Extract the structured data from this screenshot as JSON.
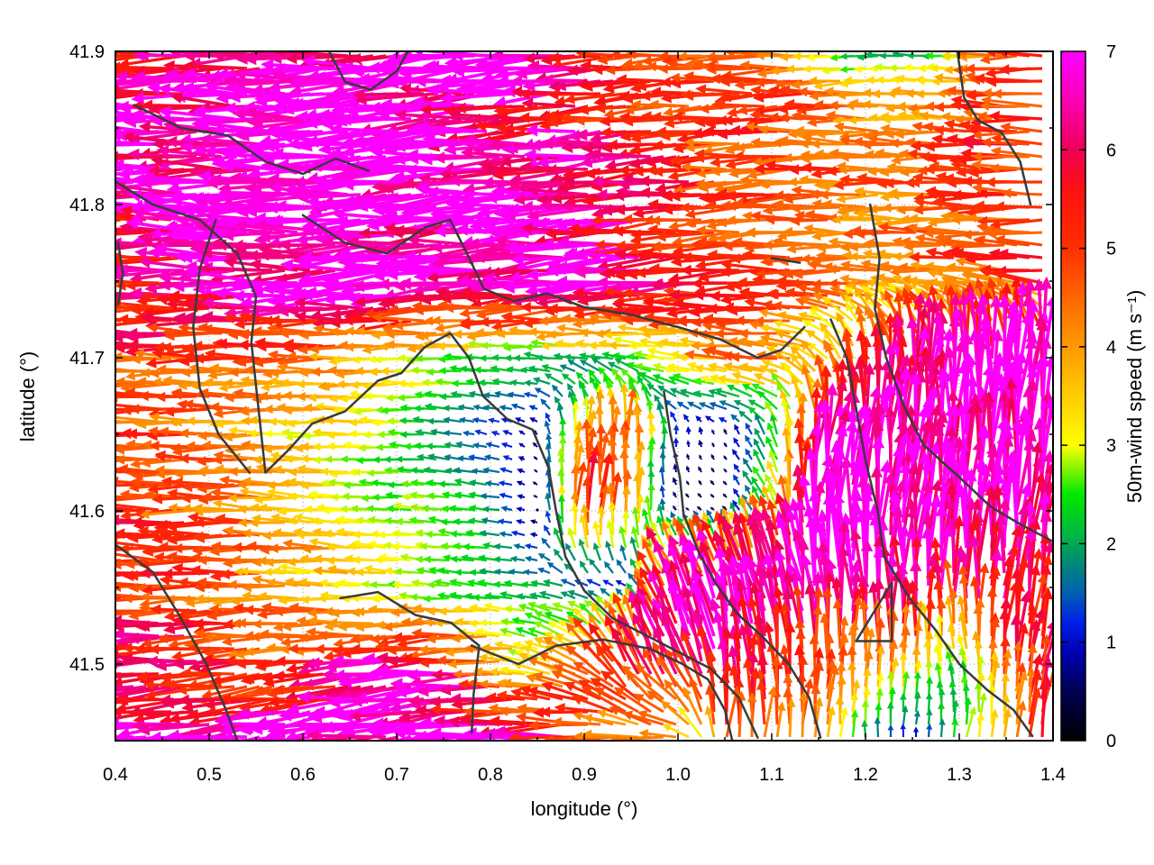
{
  "figure": {
    "background": "#ffffff"
  },
  "chart_data": {
    "type": "quiver",
    "title": "",
    "xlabel": "longitude (°)",
    "ylabel": "latitude (°)",
    "xlim": [
      0.4,
      1.4
    ],
    "ylim": [
      41.45,
      41.9
    ],
    "xticks": [
      0.4,
      0.5,
      0.6,
      0.7,
      0.8,
      0.9,
      1.0,
      1.1,
      1.2,
      1.3,
      1.4
    ],
    "xtick_labels": [
      "0.4",
      "0.5",
      "0.6",
      "0.7",
      "0.8",
      "0.9",
      "1.0",
      "1.1",
      "1.2",
      "1.3",
      "1.4"
    ],
    "xticks_minor": [
      0.45,
      0.55,
      0.65,
      0.75,
      0.85,
      0.95,
      1.05,
      1.15,
      1.25,
      1.35
    ],
    "yticks": [
      41.5,
      41.6,
      41.7,
      41.8,
      41.9
    ],
    "ytick_labels": [
      "41.5",
      "41.6",
      "41.7",
      "41.8",
      "41.9"
    ],
    "yticks_minor": [
      41.45,
      41.55,
      41.65,
      41.75,
      41.85
    ],
    "grid": "dotted",
    "legend_position": "none",
    "colorbar": {
      "label": "50m-wind speed (m s⁻¹)",
      "min": 0,
      "max": 7,
      "ticks": [
        0,
        1,
        2,
        3,
        4,
        5,
        6,
        7
      ],
      "tick_labels": [
        "0",
        "1",
        "2",
        "3",
        "4",
        "5",
        "6",
        "7"
      ]
    },
    "colormap": [
      [
        0,
        "#000000"
      ],
      [
        0.5,
        "#000052"
      ],
      [
        0.9,
        "#0000b4"
      ],
      [
        1.2,
        "#0020e8"
      ],
      [
        1.5,
        "#0060b0"
      ],
      [
        1.8,
        "#008878"
      ],
      [
        2.1,
        "#00b840"
      ],
      [
        2.5,
        "#00e800"
      ],
      [
        3.0,
        "#ffff00"
      ],
      [
        3.5,
        "#ffcc00"
      ],
      [
        4.0,
        "#ff9900"
      ],
      [
        4.5,
        "#ff6600"
      ],
      [
        5.0,
        "#ff3000"
      ],
      [
        5.6,
        "#ff1010"
      ],
      [
        6.0,
        "#ee0055"
      ],
      [
        6.5,
        "#fb00b5"
      ],
      [
        7.0,
        "#ff00ff"
      ]
    ],
    "field": {
      "units": "m s-1",
      "lon_start": 0.4,
      "lon_step": 0.05,
      "lon_count": 21,
      "lat_start": 41.9,
      "lat_step": -0.05,
      "lat_count": 10,
      "u": [
        [
          -6.5,
          -6,
          -7,
          -6.5,
          -7,
          -7,
          -7,
          -7,
          -6.5,
          -7,
          -6,
          -5,
          -4.5,
          -5,
          -5.5,
          -4,
          -2.2,
          -2,
          -2.5,
          -4.5,
          -5
        ],
        [
          -6.5,
          -7,
          -6,
          -7,
          -6.5,
          -7,
          -7,
          -7,
          -7,
          -6.5,
          -6,
          -5.5,
          -5,
          -4.8,
          -5,
          -5,
          -4.8,
          -4.5,
          -4.5,
          -5,
          -5.5
        ],
        [
          -6,
          -6.5,
          -7,
          -7,
          -7,
          -7,
          -7,
          -7,
          -7,
          -7,
          -6.5,
          -6,
          -5.5,
          -5,
          -4.8,
          -4.8,
          -4.5,
          -4.5,
          -4.8,
          -5,
          -5
        ],
        [
          -5.5,
          -6,
          -6.5,
          -7,
          -7,
          -7,
          -7,
          -7,
          -7,
          -7,
          -7,
          -6.5,
          -6,
          -5.5,
          -5,
          -4.8,
          -4.5,
          -4.3,
          -4.5,
          -4.8,
          -5
        ],
        [
          -5.5,
          -5,
          -5,
          -4.8,
          -4.5,
          -4.2,
          -3.5,
          -3,
          -2.5,
          -2.3,
          -2.3,
          -2.5,
          -3.5,
          -4,
          -4.3,
          -3,
          -0.5,
          0,
          0.2,
          0.3,
          0.3
        ],
        [
          -5,
          -4.8,
          -4.5,
          -4,
          -3.2,
          -3.2,
          -2.6,
          -2,
          -1.2,
          -0.5,
          0.2,
          0.3,
          0,
          -0.3,
          -1,
          0.5,
          0.3,
          0.3,
          0.2,
          0.3,
          0.5
        ],
        [
          -5.5,
          -5,
          -4.8,
          -4.5,
          -4,
          -3.5,
          -3,
          -2.6,
          -2.2,
          -0.4,
          0.5,
          0.3,
          -0.4,
          -0.4,
          -1.5,
          1,
          0.5,
          0.5,
          0.5,
          0.5,
          1
        ],
        [
          -6,
          -5.5,
          -5,
          -4.5,
          -4,
          -3.5,
          -3,
          -2.5,
          -2.2,
          -2,
          -1.5,
          -1,
          -2.5,
          -2,
          -1.5,
          -1,
          -0.5,
          0,
          0.3,
          0.5,
          0.5
        ],
        [
          -6,
          -5.5,
          -5.5,
          -5,
          -5,
          -5.5,
          -6,
          -6.5,
          -5,
          -3,
          -4,
          -2.5,
          -2,
          -1,
          -0.5,
          0,
          0.3,
          0.5,
          -1,
          0.5,
          1
        ],
        [
          -7,
          -7,
          -7,
          -7,
          -7,
          -7,
          -7,
          -7,
          -7,
          -6.5,
          -6,
          -5,
          -4.5,
          0.5,
          0.3,
          0.5,
          0,
          0,
          0.5,
          0.5,
          1
        ]
      ],
      "v": [
        [
          0,
          0,
          0,
          0,
          0,
          -0.3,
          -0.3,
          -0.5,
          -0.5,
          -0.5,
          -0.5,
          -0.3,
          -0.3,
          0,
          0,
          0,
          -0.3,
          0.2,
          0,
          0,
          0
        ],
        [
          0,
          0,
          0,
          0,
          0,
          -0.3,
          -0.5,
          -0.5,
          -0.5,
          -0.5,
          -0.5,
          -0.5,
          -0.3,
          -0.3,
          -0.3,
          0,
          0,
          0,
          0.3,
          0.3,
          0
        ],
        [
          0,
          0,
          0,
          0,
          -0.3,
          -0.5,
          -0.5,
          -0.5,
          -0.5,
          -0.5,
          -0.5,
          -0.5,
          -0.3,
          -0.3,
          -0.3,
          0,
          0,
          0,
          0,
          0,
          0
        ],
        [
          0,
          0,
          0,
          0,
          0,
          -0.3,
          -0.5,
          -0.5,
          -0.5,
          -0.5,
          -0.5,
          -0.5,
          -0.3,
          -0.3,
          0,
          0,
          0.3,
          0.3,
          0.5,
          0.5,
          0.5
        ],
        [
          0,
          0,
          0,
          0,
          0,
          0,
          0,
          0,
          0.2,
          0.2,
          0.3,
          0.5,
          0.5,
          0.5,
          0.5,
          1.5,
          4.5,
          6,
          6.5,
          7,
          7
        ],
        [
          0,
          0,
          0,
          0,
          0,
          0,
          0,
          0.2,
          0.3,
          0.5,
          3.5,
          4.5,
          1,
          0.5,
          2,
          6,
          7,
          7,
          7,
          7,
          7
        ],
        [
          0,
          0,
          0,
          0.2,
          0.2,
          0.2,
          0.2,
          0.3,
          0.3,
          0.2,
          5.5,
          4,
          0.3,
          0.3,
          2.5,
          7,
          7,
          7,
          7,
          7,
          7
        ],
        [
          0,
          0,
          0,
          0,
          0.2,
          0.3,
          0.3,
          0.3,
          0.3,
          0.3,
          0.5,
          0.5,
          5.5,
          6.5,
          7,
          7,
          7,
          6.5,
          6.5,
          6.5,
          6
        ],
        [
          -0.3,
          -0.3,
          -0.3,
          -0.5,
          -0.5,
          -0.5,
          -0.5,
          -0.5,
          0,
          1,
          2,
          6,
          6.5,
          6.5,
          5.5,
          5,
          4.5,
          4,
          2,
          5,
          5.5
        ],
        [
          -0.8,
          -0.8,
          -1,
          -1,
          -1,
          -1,
          -1,
          -0.8,
          -0.8,
          -0.5,
          -0.5,
          -0.3,
          0,
          5,
          4.5,
          4,
          2,
          0.8,
          2.5,
          3.5,
          6
        ]
      ]
    },
    "contours": [
      [
        [
          0.42,
          41.865
        ],
        [
          0.47,
          41.85
        ],
        [
          0.52,
          41.845
        ],
        [
          0.56,
          41.828
        ],
        [
          0.6,
          41.82
        ],
        [
          0.635,
          41.83
        ],
        [
          0.67,
          41.822
        ]
      ],
      [
        [
          0.4,
          41.815
        ],
        [
          0.44,
          41.8
        ],
        [
          0.49,
          41.79
        ],
        [
          0.53,
          41.768
        ],
        [
          0.55,
          41.74
        ],
        [
          0.545,
          41.71
        ],
        [
          0.552,
          41.67
        ],
        [
          0.56,
          41.625
        ],
        [
          0.585,
          41.64
        ],
        [
          0.61,
          41.657
        ],
        [
          0.645,
          41.665
        ],
        [
          0.68,
          41.685
        ],
        [
          0.705,
          41.69
        ],
        [
          0.73,
          41.707
        ],
        [
          0.757,
          41.716
        ],
        [
          0.777,
          41.7
        ],
        [
          0.792,
          41.675
        ],
        [
          0.818,
          41.66
        ],
        [
          0.845,
          41.653
        ],
        [
          0.862,
          41.628
        ],
        [
          0.87,
          41.6
        ],
        [
          0.88,
          41.57
        ],
        [
          0.9,
          41.548
        ],
        [
          0.93,
          41.53
        ],
        [
          0.962,
          41.52
        ],
        [
          1.0,
          41.508
        ],
        [
          1.035,
          41.497
        ],
        [
          1.065,
          41.478
        ],
        [
          1.085,
          41.452
        ]
      ],
      [
        [
          0.985,
          41.678
        ],
        [
          0.992,
          41.65
        ],
        [
          1.002,
          41.622
        ],
        [
          1.006,
          41.598
        ],
        [
          1.022,
          41.573
        ],
        [
          1.04,
          41.553
        ],
        [
          1.063,
          41.533
        ],
        [
          1.09,
          41.518
        ],
        [
          1.118,
          41.5
        ],
        [
          1.14,
          41.478
        ],
        [
          1.152,
          41.452
        ]
      ],
      [
        [
          1.163,
          41.725
        ],
        [
          1.18,
          41.7
        ],
        [
          1.19,
          41.667
        ],
        [
          1.2,
          41.633
        ],
        [
          1.213,
          41.6
        ],
        [
          1.22,
          41.57
        ],
        [
          1.247,
          41.543
        ],
        [
          1.275,
          41.522
        ],
        [
          1.3,
          41.5
        ],
        [
          1.33,
          41.483
        ],
        [
          1.358,
          41.47
        ],
        [
          1.378,
          41.453
        ]
      ],
      [
        [
          1.205,
          41.8
        ],
        [
          1.215,
          41.765
        ],
        [
          1.21,
          41.732
        ],
        [
          1.222,
          41.7
        ],
        [
          1.242,
          41.667
        ],
        [
          1.262,
          41.643
        ],
        [
          1.3,
          41.622
        ],
        [
          1.333,
          41.603
        ],
        [
          1.363,
          41.592
        ],
        [
          1.4,
          41.58
        ]
      ],
      [
        [
          0.628,
          41.9
        ],
        [
          0.645,
          41.88
        ],
        [
          0.672,
          41.875
        ],
        [
          0.7,
          41.887
        ],
        [
          0.712,
          41.9
        ]
      ],
      [
        [
          1.298,
          41.9
        ],
        [
          1.305,
          41.87
        ],
        [
          1.32,
          41.855
        ],
        [
          1.345,
          41.847
        ],
        [
          1.365,
          41.828
        ],
        [
          1.376,
          41.8
        ]
      ],
      [
        [
          1.19,
          41.515
        ],
        [
          1.228,
          41.515
        ],
        [
          1.228,
          41.553
        ],
        [
          1.19,
          41.515
        ]
      ],
      [
        [
          0.64,
          41.543
        ],
        [
          0.68,
          41.547
        ],
        [
          0.72,
          41.532
        ],
        [
          0.758,
          41.527
        ],
        [
          0.788,
          41.512
        ],
        [
          0.782,
          41.48
        ],
        [
          0.78,
          41.455
        ]
      ],
      [
        [
          0.78,
          41.512
        ],
        [
          0.83,
          41.5
        ],
        [
          0.87,
          41.512
        ],
        [
          0.92,
          41.516
        ],
        [
          0.97,
          41.51
        ],
        [
          1.005,
          41.5
        ],
        [
          1.032,
          41.49
        ],
        [
          1.05,
          41.47
        ],
        [
          1.058,
          41.45
        ]
      ],
      [
        [
          0.4,
          41.578
        ],
        [
          0.44,
          41.56
        ],
        [
          0.468,
          41.532
        ],
        [
          0.497,
          41.5
        ],
        [
          0.518,
          41.47
        ],
        [
          0.53,
          41.45
        ]
      ],
      [
        [
          0.507,
          41.79
        ],
        [
          0.49,
          41.758
        ],
        [
          0.483,
          41.72
        ],
        [
          0.49,
          41.68
        ],
        [
          0.51,
          41.65
        ],
        [
          0.543,
          41.625
        ]
      ],
      [
        [
          0.6,
          41.793
        ],
        [
          0.645,
          41.775
        ],
        [
          0.69,
          41.768
        ],
        [
          0.73,
          41.785
        ],
        [
          0.757,
          41.79
        ],
        [
          0.775,
          41.768
        ],
        [
          0.793,
          41.745
        ],
        [
          0.825,
          41.737
        ],
        [
          0.86,
          41.742
        ],
        [
          0.9,
          41.733
        ],
        [
          0.95,
          41.728
        ],
        [
          1.0,
          41.72
        ],
        [
          1.045,
          41.712
        ],
        [
          1.085,
          41.7
        ],
        [
          1.11,
          41.705
        ],
        [
          1.135,
          41.72
        ]
      ],
      [
        [
          0.403,
          41.775
        ],
        [
          0.408,
          41.755
        ],
        [
          0.403,
          41.735
        ]
      ],
      [
        [
          1.1,
          41.765
        ],
        [
          1.13,
          41.762
        ]
      ]
    ]
  }
}
